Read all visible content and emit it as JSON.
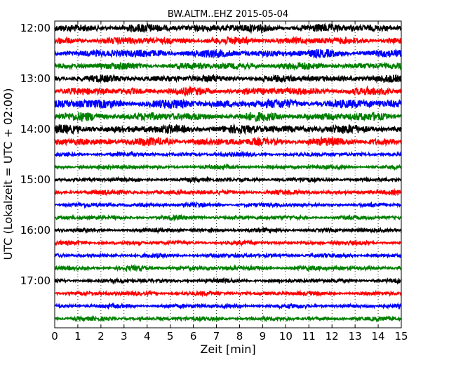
{
  "chart_data": {
    "type": "line",
    "subtype": "dayplot-seismogram",
    "title": "BW.ALTM..EHZ 2015-05-04",
    "xlabel": "Zeit  [min]",
    "ylabel": "UTC (Lokalzeit = UTC + 02:00)",
    "xlim": [
      0,
      15
    ],
    "x_ticks": [
      0,
      1,
      2,
      3,
      4,
      5,
      6,
      7,
      8,
      9,
      10,
      11,
      12,
      13,
      14,
      15
    ],
    "x_tick_labels": [
      "0",
      "1",
      "2",
      "3",
      "4",
      "5",
      "6",
      "7",
      "8",
      "9",
      "10",
      "11",
      "12",
      "13",
      "14",
      "15"
    ],
    "y_tick_labels": [
      "12:00",
      "13:00",
      "14:00",
      "15:00",
      "16:00",
      "17:00"
    ],
    "grid": "vertical dotted at each minute",
    "series_colors": [
      "#000000",
      "#ff0000",
      "#0000ff",
      "#008000"
    ],
    "traces": [
      {
        "start": "12:00",
        "color": "#000000",
        "amplitude": 0.32
      },
      {
        "start": "12:15",
        "color": "#ff0000",
        "amplitude": 0.28
      },
      {
        "start": "12:30",
        "color": "#0000ff",
        "amplitude": 0.32
      },
      {
        "start": "12:45",
        "color": "#008000",
        "amplitude": 0.28
      },
      {
        "start": "13:00",
        "color": "#000000",
        "amplitude": 0.28
      },
      {
        "start": "13:15",
        "color": "#ff0000",
        "amplitude": 0.3
      },
      {
        "start": "13:30",
        "color": "#0000ff",
        "amplitude": 0.36
      },
      {
        "start": "13:45",
        "color": "#008000",
        "amplitude": 0.34
      },
      {
        "start": "14:00",
        "color": "#000000",
        "amplitude": 0.34
      },
      {
        "start": "14:15",
        "color": "#ff0000",
        "amplitude": 0.32
      },
      {
        "start": "14:30",
        "color": "#0000ff",
        "amplitude": 0.16
      },
      {
        "start": "14:45",
        "color": "#008000",
        "amplitude": 0.16
      },
      {
        "start": "15:00",
        "color": "#000000",
        "amplitude": 0.16
      },
      {
        "start": "15:15",
        "color": "#ff0000",
        "amplitude": 0.18
      },
      {
        "start": "15:30",
        "color": "#0000ff",
        "amplitude": 0.16
      },
      {
        "start": "15:45",
        "color": "#008000",
        "amplitude": 0.16
      },
      {
        "start": "16:00",
        "color": "#000000",
        "amplitude": 0.16
      },
      {
        "start": "16:15",
        "color": "#ff0000",
        "amplitude": 0.16
      },
      {
        "start": "16:30",
        "color": "#0000ff",
        "amplitude": 0.16
      },
      {
        "start": "16:45",
        "color": "#008000",
        "amplitude": 0.18
      },
      {
        "start": "17:00",
        "color": "#000000",
        "amplitude": 0.16
      },
      {
        "start": "17:15",
        "color": "#ff0000",
        "amplitude": 0.16
      },
      {
        "start": "17:30",
        "color": "#0000ff",
        "amplitude": 0.16
      },
      {
        "start": "17:45",
        "color": "#008000",
        "amplitude": 0.16
      }
    ]
  }
}
